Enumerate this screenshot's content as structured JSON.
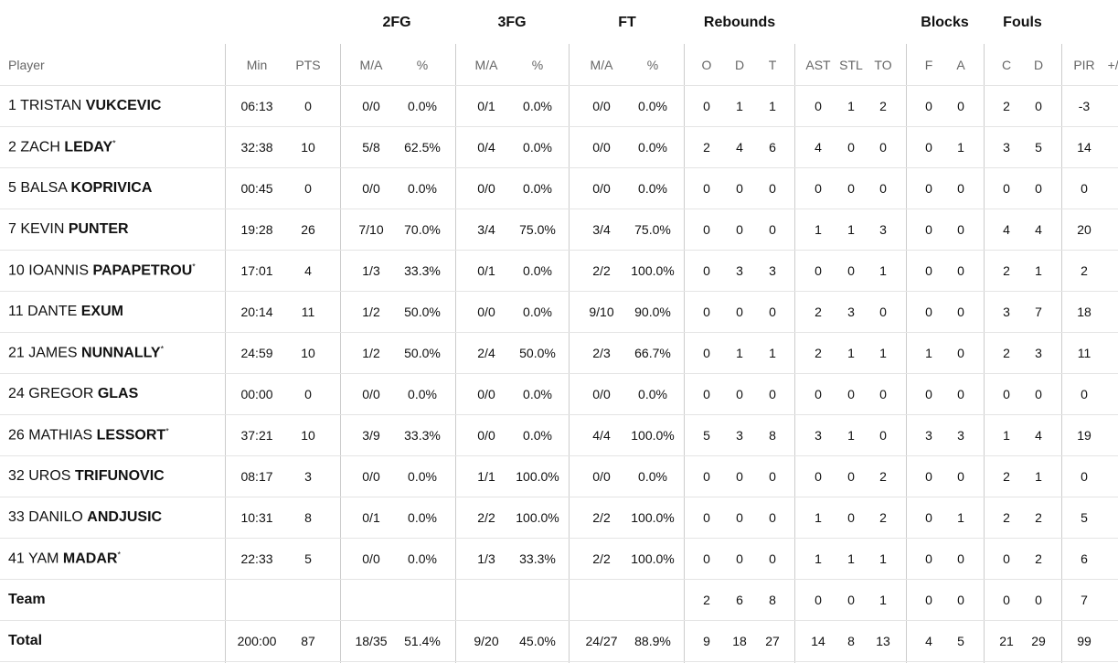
{
  "table": {
    "groups": [
      {
        "label": "2FG",
        "span": [
          3,
          4
        ]
      },
      {
        "label": "3FG",
        "span": [
          5,
          6
        ]
      },
      {
        "label": "FT",
        "span": [
          7,
          8
        ]
      },
      {
        "label": "Rebounds",
        "span": [
          9,
          11
        ]
      },
      {
        "label": "Blocks",
        "span": [
          15,
          16
        ]
      },
      {
        "label": "Fouls",
        "span": [
          17,
          18
        ]
      }
    ],
    "columns": [
      "Player",
      "Min",
      "PTS",
      "M/A",
      "%",
      "M/A",
      "%",
      "M/A",
      "%",
      "O",
      "D",
      "T",
      "AST",
      "STL",
      "TO",
      "F",
      "A",
      "C",
      "D",
      "PIR",
      "+/-"
    ],
    "rows": [
      {
        "number": "1",
        "first": "TRISTAN",
        "last": "VUKCEVIC",
        "cells": [
          "06:13",
          "0",
          "0/0",
          "0.0%",
          "0/1",
          "0.0%",
          "0/0",
          "0.0%",
          "0",
          "1",
          "1",
          "0",
          "1",
          "2",
          "0",
          "0",
          "2",
          "0",
          "-3"
        ]
      },
      {
        "number": "2",
        "first": "ZACH",
        "last": "LEDAY",
        "mark": "*",
        "cells": [
          "32:38",
          "10",
          "5/8",
          "62.5%",
          "0/4",
          "0.0%",
          "0/0",
          "0.0%",
          "2",
          "4",
          "6",
          "4",
          "0",
          "0",
          "0",
          "1",
          "3",
          "5",
          "14"
        ]
      },
      {
        "number": "5",
        "first": "BALSA",
        "last": "KOPRIVICA",
        "cells": [
          "00:45",
          "0",
          "0/0",
          "0.0%",
          "0/0",
          "0.0%",
          "0/0",
          "0.0%",
          "0",
          "0",
          "0",
          "0",
          "0",
          "0",
          "0",
          "0",
          "0",
          "0",
          "0"
        ]
      },
      {
        "number": "7",
        "first": "KEVIN",
        "last": "PUNTER",
        "cells": [
          "19:28",
          "26",
          "7/10",
          "70.0%",
          "3/4",
          "75.0%",
          "3/4",
          "75.0%",
          "0",
          "0",
          "0",
          "1",
          "1",
          "3",
          "0",
          "0",
          "4",
          "4",
          "20"
        ]
      },
      {
        "number": "10",
        "first": "IOANNIS",
        "last": "PAPAPETROU",
        "mark": "*",
        "cells": [
          "17:01",
          "4",
          "1/3",
          "33.3%",
          "0/1",
          "0.0%",
          "2/2",
          "100.0%",
          "0",
          "3",
          "3",
          "0",
          "0",
          "1",
          "0",
          "0",
          "2",
          "1",
          "2"
        ]
      },
      {
        "number": "11",
        "first": "DANTE",
        "last": "EXUM",
        "cells": [
          "20:14",
          "11",
          "1/2",
          "50.0%",
          "0/0",
          "0.0%",
          "9/10",
          "90.0%",
          "0",
          "0",
          "0",
          "2",
          "3",
          "0",
          "0",
          "0",
          "3",
          "7",
          "18"
        ]
      },
      {
        "number": "21",
        "first": "JAMES",
        "last": "NUNNALLY",
        "mark": "*",
        "cells": [
          "24:59",
          "10",
          "1/2",
          "50.0%",
          "2/4",
          "50.0%",
          "2/3",
          "66.7%",
          "0",
          "1",
          "1",
          "2",
          "1",
          "1",
          "1",
          "0",
          "2",
          "3",
          "11"
        ]
      },
      {
        "number": "24",
        "first": "GREGOR",
        "last": "GLAS",
        "cells": [
          "00:00",
          "0",
          "0/0",
          "0.0%",
          "0/0",
          "0.0%",
          "0/0",
          "0.0%",
          "0",
          "0",
          "0",
          "0",
          "0",
          "0",
          "0",
          "0",
          "0",
          "0",
          "0"
        ]
      },
      {
        "number": "26",
        "first": "MATHIAS",
        "last": "LESSORT",
        "mark": "*",
        "cells": [
          "37:21",
          "10",
          "3/9",
          "33.3%",
          "0/0",
          "0.0%",
          "4/4",
          "100.0%",
          "5",
          "3",
          "8",
          "3",
          "1",
          "0",
          "3",
          "3",
          "1",
          "4",
          "19"
        ]
      },
      {
        "number": "32",
        "first": "UROS",
        "last": "TRIFUNOVIC",
        "cells": [
          "08:17",
          "3",
          "0/0",
          "0.0%",
          "1/1",
          "100.0%",
          "0/0",
          "0.0%",
          "0",
          "0",
          "0",
          "0",
          "0",
          "2",
          "0",
          "0",
          "2",
          "1",
          "0"
        ]
      },
      {
        "number": "33",
        "first": "DANILO",
        "last": "ANDJUSIC",
        "cells": [
          "10:31",
          "8",
          "0/1",
          "0.0%",
          "2/2",
          "100.0%",
          "2/2",
          "100.0%",
          "0",
          "0",
          "0",
          "1",
          "0",
          "2",
          "0",
          "1",
          "2",
          "2",
          "5"
        ]
      },
      {
        "number": "41",
        "first": "YAM",
        "last": "MADAR",
        "mark": "*",
        "cells": [
          "22:33",
          "5",
          "0/0",
          "0.0%",
          "1/3",
          "33.3%",
          "2/2",
          "100.0%",
          "0",
          "0",
          "0",
          "1",
          "1",
          "1",
          "0",
          "0",
          "0",
          "2",
          "6"
        ]
      },
      {
        "label": "Team",
        "cells": [
          null,
          null,
          null,
          null,
          null,
          null,
          null,
          null,
          "2",
          "6",
          "8",
          "0",
          "0",
          "1",
          "0",
          "0",
          "0",
          "0",
          "7"
        ]
      },
      {
        "label": "Total",
        "cells": [
          "200:00",
          "87",
          "18/35",
          "51.4%",
          "9/20",
          "45.0%",
          "24/27",
          "88.9%",
          "9",
          "18",
          "27",
          "14",
          "8",
          "13",
          "4",
          "5",
          "21",
          "29",
          "99"
        ]
      }
    ]
  }
}
